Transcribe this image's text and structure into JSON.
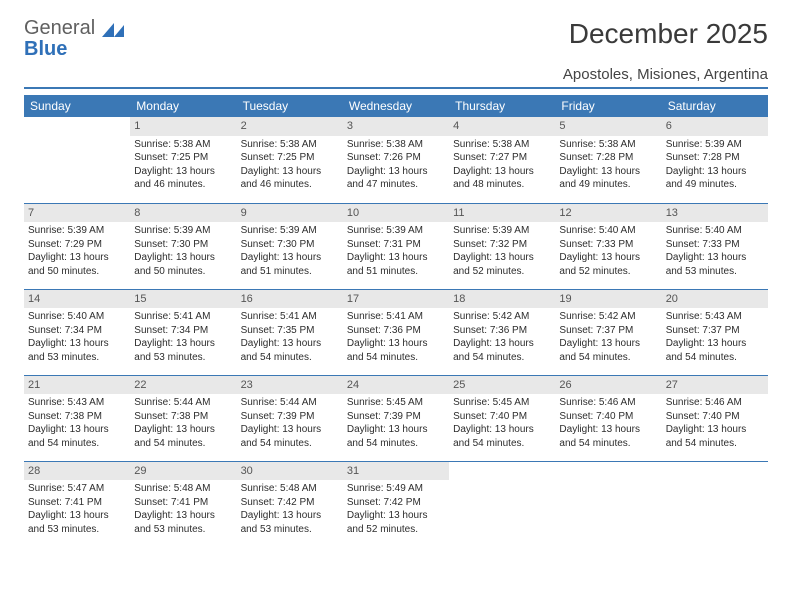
{
  "brand": {
    "part1": "General",
    "part2": "Blue"
  },
  "title": "December 2025",
  "location": "Apostoles, Misiones, Argentina",
  "colors": {
    "header_bg": "#3b78b5",
    "header_text": "#ffffff",
    "daynum_bg": "#e8e8e8",
    "border": "#3b78b5",
    "brand_gray": "#606060",
    "brand_blue": "#2f70b8"
  },
  "weekdays": [
    "Sunday",
    "Monday",
    "Tuesday",
    "Wednesday",
    "Thursday",
    "Friday",
    "Saturday"
  ],
  "grid": {
    "weeks": 5,
    "start_weekday": 1,
    "days_in_month": 31
  },
  "days": {
    "1": {
      "sunrise": "5:38 AM",
      "sunset": "7:25 PM",
      "daylight": "13 hours and 46 minutes."
    },
    "2": {
      "sunrise": "5:38 AM",
      "sunset": "7:25 PM",
      "daylight": "13 hours and 46 minutes."
    },
    "3": {
      "sunrise": "5:38 AM",
      "sunset": "7:26 PM",
      "daylight": "13 hours and 47 minutes."
    },
    "4": {
      "sunrise": "5:38 AM",
      "sunset": "7:27 PM",
      "daylight": "13 hours and 48 minutes."
    },
    "5": {
      "sunrise": "5:38 AM",
      "sunset": "7:28 PM",
      "daylight": "13 hours and 49 minutes."
    },
    "6": {
      "sunrise": "5:39 AM",
      "sunset": "7:28 PM",
      "daylight": "13 hours and 49 minutes."
    },
    "7": {
      "sunrise": "5:39 AM",
      "sunset": "7:29 PM",
      "daylight": "13 hours and 50 minutes."
    },
    "8": {
      "sunrise": "5:39 AM",
      "sunset": "7:30 PM",
      "daylight": "13 hours and 50 minutes."
    },
    "9": {
      "sunrise": "5:39 AM",
      "sunset": "7:30 PM",
      "daylight": "13 hours and 51 minutes."
    },
    "10": {
      "sunrise": "5:39 AM",
      "sunset": "7:31 PM",
      "daylight": "13 hours and 51 minutes."
    },
    "11": {
      "sunrise": "5:39 AM",
      "sunset": "7:32 PM",
      "daylight": "13 hours and 52 minutes."
    },
    "12": {
      "sunrise": "5:40 AM",
      "sunset": "7:33 PM",
      "daylight": "13 hours and 52 minutes."
    },
    "13": {
      "sunrise": "5:40 AM",
      "sunset": "7:33 PM",
      "daylight": "13 hours and 53 minutes."
    },
    "14": {
      "sunrise": "5:40 AM",
      "sunset": "7:34 PM",
      "daylight": "13 hours and 53 minutes."
    },
    "15": {
      "sunrise": "5:41 AM",
      "sunset": "7:34 PM",
      "daylight": "13 hours and 53 minutes."
    },
    "16": {
      "sunrise": "5:41 AM",
      "sunset": "7:35 PM",
      "daylight": "13 hours and 54 minutes."
    },
    "17": {
      "sunrise": "5:41 AM",
      "sunset": "7:36 PM",
      "daylight": "13 hours and 54 minutes."
    },
    "18": {
      "sunrise": "5:42 AM",
      "sunset": "7:36 PM",
      "daylight": "13 hours and 54 minutes."
    },
    "19": {
      "sunrise": "5:42 AM",
      "sunset": "7:37 PM",
      "daylight": "13 hours and 54 minutes."
    },
    "20": {
      "sunrise": "5:43 AM",
      "sunset": "7:37 PM",
      "daylight": "13 hours and 54 minutes."
    },
    "21": {
      "sunrise": "5:43 AM",
      "sunset": "7:38 PM",
      "daylight": "13 hours and 54 minutes."
    },
    "22": {
      "sunrise": "5:44 AM",
      "sunset": "7:38 PM",
      "daylight": "13 hours and 54 minutes."
    },
    "23": {
      "sunrise": "5:44 AM",
      "sunset": "7:39 PM",
      "daylight": "13 hours and 54 minutes."
    },
    "24": {
      "sunrise": "5:45 AM",
      "sunset": "7:39 PM",
      "daylight": "13 hours and 54 minutes."
    },
    "25": {
      "sunrise": "5:45 AM",
      "sunset": "7:40 PM",
      "daylight": "13 hours and 54 minutes."
    },
    "26": {
      "sunrise": "5:46 AM",
      "sunset": "7:40 PM",
      "daylight": "13 hours and 54 minutes."
    },
    "27": {
      "sunrise": "5:46 AM",
      "sunset": "7:40 PM",
      "daylight": "13 hours and 54 minutes."
    },
    "28": {
      "sunrise": "5:47 AM",
      "sunset": "7:41 PM",
      "daylight": "13 hours and 53 minutes."
    },
    "29": {
      "sunrise": "5:48 AM",
      "sunset": "7:41 PM",
      "daylight": "13 hours and 53 minutes."
    },
    "30": {
      "sunrise": "5:48 AM",
      "sunset": "7:42 PM",
      "daylight": "13 hours and 53 minutes."
    },
    "31": {
      "sunrise": "5:49 AM",
      "sunset": "7:42 PM",
      "daylight": "13 hours and 52 minutes."
    }
  },
  "labels": {
    "sunrise_prefix": "Sunrise: ",
    "sunset_prefix": "Sunset: ",
    "daylight_prefix": "Daylight: "
  }
}
